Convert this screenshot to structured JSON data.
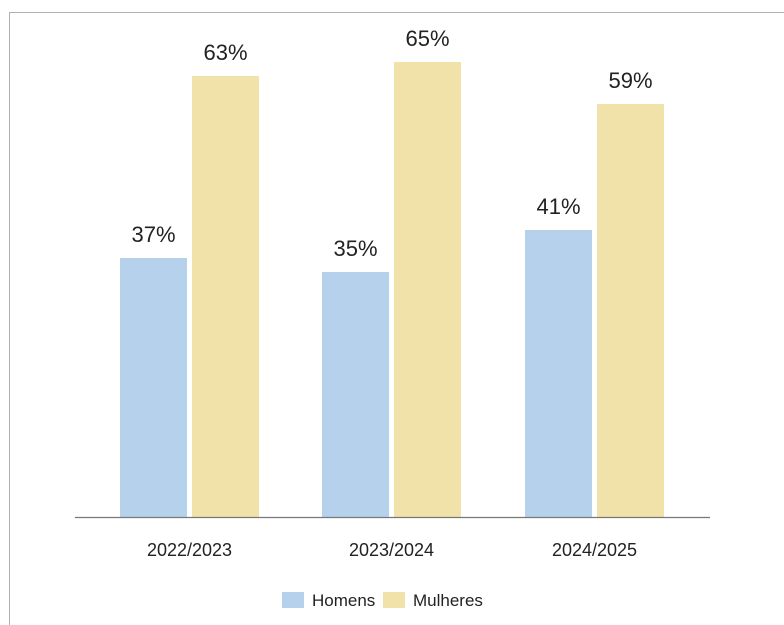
{
  "chart_data": {
    "type": "bar",
    "categories": [
      "2022/2023",
      "2023/2024",
      "2024/2025"
    ],
    "series": [
      {
        "name": "Homens",
        "values": [
          37,
          35,
          41
        ],
        "labels": [
          "37%",
          "35%",
          "41%"
        ],
        "color": "#b6d1ec"
      },
      {
        "name": "Mulheres",
        "values": [
          63,
          65,
          59
        ],
        "labels": [
          "63%",
          "65%",
          "59%"
        ],
        "color": "#f0e2a8"
      }
    ],
    "ylim": [
      0,
      70
    ],
    "grid": false,
    "legend": "bottom-center",
    "axis_color": "#777777",
    "frame_color": "#b0b0b0"
  }
}
